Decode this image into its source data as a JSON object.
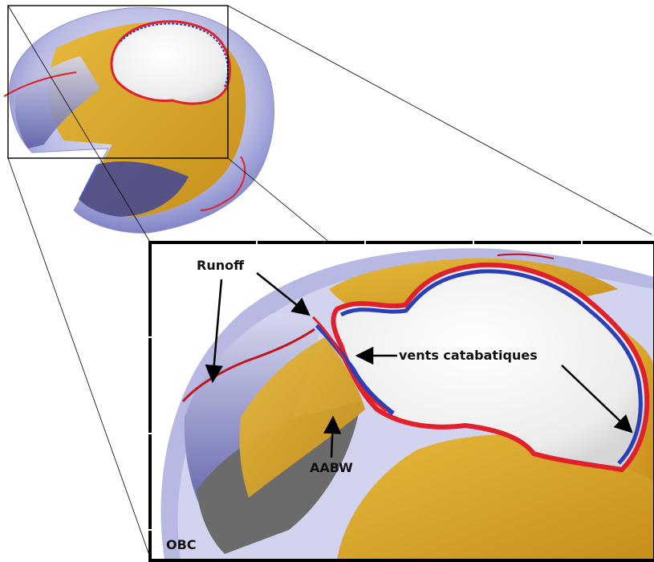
{
  "figure": {
    "labels": {
      "runoff": "Runoff",
      "vents": "vents catabatiques",
      "aabw": "AABW",
      "obc": "OBC"
    }
  },
  "colors": {
    "ocean_shell": "#aeb0de",
    "ocean_deep": "#4a4f9c",
    "continent_ice": "#f4f4f4",
    "seafloor": "#d9a62a",
    "coast_red": "#e0202a",
    "coast_blue": "#2a3fb8",
    "frame": "#000000"
  }
}
